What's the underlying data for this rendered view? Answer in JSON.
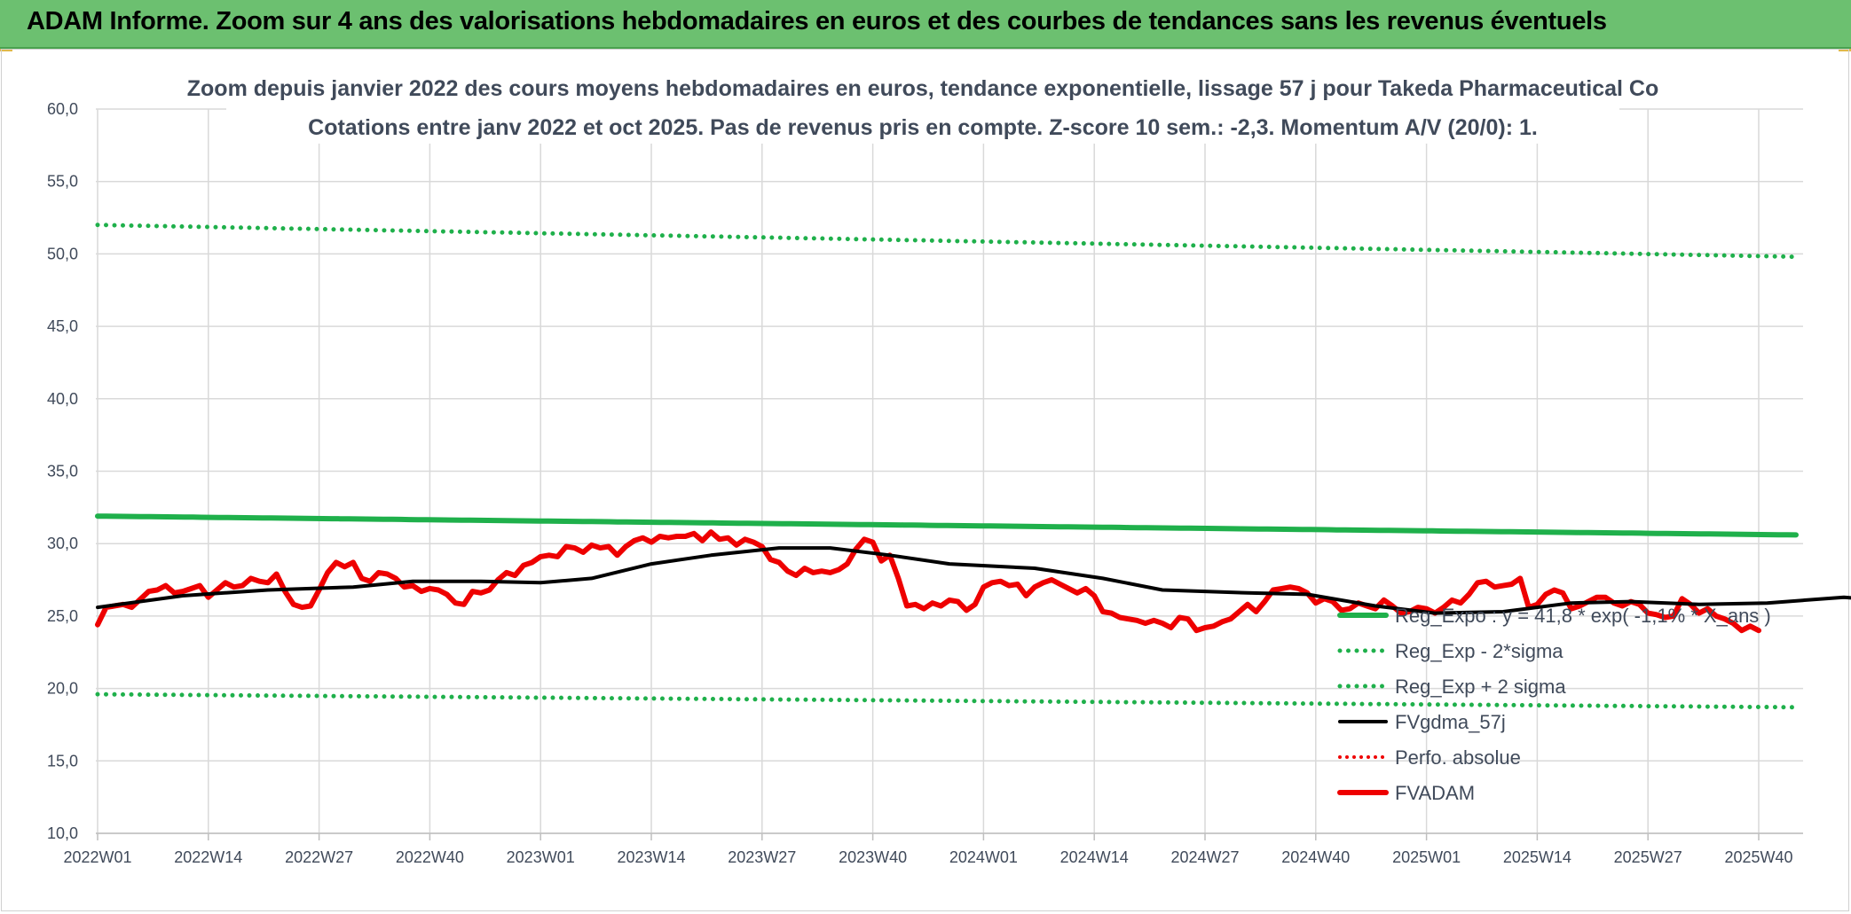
{
  "banner": {
    "title": "ADAM Informe. Zoom sur 4 ans des valorisations hebdomadaires en euros et des courbes de tendances sans les revenus éventuels"
  },
  "chart_data": {
    "type": "line",
    "title": "Zoom depuis janvier 2022 des cours moyens hebdomadaires en euros, tendance exponentielle, lissage 57 j pour Takeda Pharmaceutical Co",
    "subtitle": "Cotations entre janv 2022 et oct 2025. Pas de revenus pris en compte. Z-score 10 sem.: -2,3. Momentum A/V (20/0): 1.",
    "xlabel": "",
    "ylabel": "",
    "ylim": [
      10,
      60
    ],
    "yticks": [
      "10,0",
      "15,0",
      "20,0",
      "25,0",
      "30,0",
      "35,0",
      "40,0",
      "45,0",
      "50,0",
      "55,0",
      "60,0"
    ],
    "xticks": [
      "2022W01",
      "2022W14",
      "2022W27",
      "2022W40",
      "2023W01",
      "2023W14",
      "2023W27",
      "2023W40",
      "2024W01",
      "2024W14",
      "2024W27",
      "2024W40",
      "2025W01",
      "2025W14",
      "2025W27",
      "2025W40"
    ],
    "grid": "both",
    "legend_position": "bottom-right",
    "colors": {
      "green": "#1fb04b",
      "black": "#000000",
      "red": "#ee0000",
      "grid": "#d9d9d9"
    },
    "series": [
      {
        "name": "Reg_Expo : y = 41,8 * exp( -1,1% * X_ans )",
        "style": "solid-green",
        "points": [
          [
            0,
            31.9
          ],
          [
            196,
            30.6
          ]
        ]
      },
      {
        "name": "Reg_Exp - 2*sigma",
        "style": "dotted-green",
        "points": [
          [
            0,
            19.6
          ],
          [
            196,
            18.7
          ]
        ]
      },
      {
        "name": "Reg_Exp + 2 sigma",
        "style": "dotted-green",
        "points": [
          [
            0,
            52.0
          ],
          [
            196,
            49.8
          ]
        ]
      },
      {
        "name": "FVgdma_57j",
        "style": "solid-black",
        "points": [
          [
            0,
            25.6
          ],
          [
            10,
            26.4
          ],
          [
            20,
            26.8
          ],
          [
            30,
            27.0
          ],
          [
            37,
            27.4
          ],
          [
            45,
            27.4
          ],
          [
            52,
            27.3
          ],
          [
            58,
            27.6
          ],
          [
            65,
            28.6
          ],
          [
            72,
            29.2
          ],
          [
            80,
            29.7
          ],
          [
            86,
            29.7
          ],
          [
            93,
            29.2
          ],
          [
            100,
            28.6
          ],
          [
            110,
            28.3
          ],
          [
            118,
            27.6
          ],
          [
            125,
            26.8
          ],
          [
            135,
            26.6
          ],
          [
            142,
            26.5
          ],
          [
            150,
            25.7
          ],
          [
            157,
            25.2
          ],
          [
            165,
            25.3
          ],
          [
            173,
            25.9
          ],
          [
            180,
            26.0
          ],
          [
            188,
            25.8
          ],
          [
            196,
            25.9
          ],
          [
            205,
            26.3
          ],
          [
            213,
            25.9
          ],
          [
            222,
            24.6
          ]
        ]
      },
      {
        "name": "Perfo. absolue",
        "style": "dotted-red",
        "points": []
      },
      {
        "name": "FVADAM",
        "style": "solid-red",
        "points": [
          [
            0,
            24.4
          ],
          [
            1,
            25.6
          ],
          [
            3,
            25.8
          ],
          [
            4,
            25.6
          ],
          [
            6,
            26.7
          ],
          [
            7,
            26.8
          ],
          [
            8,
            27.1
          ],
          [
            9,
            26.6
          ],
          [
            10,
            26.7
          ],
          [
            11,
            26.9
          ],
          [
            12,
            27.1
          ],
          [
            13,
            26.3
          ],
          [
            14,
            26.8
          ],
          [
            15,
            27.3
          ],
          [
            16,
            27.0
          ],
          [
            17,
            27.1
          ],
          [
            18,
            27.6
          ],
          [
            19,
            27.4
          ],
          [
            20,
            27.3
          ],
          [
            21,
            27.9
          ],
          [
            22,
            26.7
          ],
          [
            23,
            25.8
          ],
          [
            24,
            25.6
          ],
          [
            25,
            25.7
          ],
          [
            26,
            26.8
          ],
          [
            27,
            28.0
          ],
          [
            28,
            28.7
          ],
          [
            29,
            28.4
          ],
          [
            30,
            28.7
          ],
          [
            31,
            27.6
          ],
          [
            32,
            27.4
          ],
          [
            33,
            28.0
          ],
          [
            34,
            27.9
          ],
          [
            35,
            27.6
          ],
          [
            36,
            27.0
          ],
          [
            37,
            27.1
          ],
          [
            38,
            26.7
          ],
          [
            39,
            26.9
          ],
          [
            40,
            26.8
          ],
          [
            41,
            26.5
          ],
          [
            42,
            25.9
          ],
          [
            43,
            25.8
          ],
          [
            44,
            26.7
          ],
          [
            45,
            26.6
          ],
          [
            46,
            26.8
          ],
          [
            47,
            27.5
          ],
          [
            48,
            28.0
          ],
          [
            49,
            27.8
          ],
          [
            50,
            28.5
          ],
          [
            51,
            28.7
          ],
          [
            52,
            29.1
          ],
          [
            53,
            29.2
          ],
          [
            54,
            29.1
          ],
          [
            55,
            29.8
          ],
          [
            56,
            29.7
          ],
          [
            57,
            29.4
          ],
          [
            58,
            29.9
          ],
          [
            59,
            29.7
          ],
          [
            60,
            29.8
          ],
          [
            61,
            29.2
          ],
          [
            62,
            29.8
          ],
          [
            63,
            30.2
          ],
          [
            64,
            30.4
          ],
          [
            65,
            30.1
          ],
          [
            66,
            30.5
          ],
          [
            67,
            30.4
          ],
          [
            68,
            30.5
          ],
          [
            69,
            30.5
          ],
          [
            70,
            30.7
          ],
          [
            71,
            30.2
          ],
          [
            72,
            30.8
          ],
          [
            73,
            30.3
          ],
          [
            74,
            30.4
          ],
          [
            75,
            29.9
          ],
          [
            76,
            30.3
          ],
          [
            77,
            30.1
          ],
          [
            78,
            29.8
          ],
          [
            79,
            28.9
          ],
          [
            80,
            28.7
          ],
          [
            81,
            28.1
          ],
          [
            82,
            27.8
          ],
          [
            83,
            28.3
          ],
          [
            84,
            28.0
          ],
          [
            85,
            28.1
          ],
          [
            86,
            28.0
          ],
          [
            87,
            28.2
          ],
          [
            88,
            28.6
          ],
          [
            89,
            29.6
          ],
          [
            90,
            30.3
          ],
          [
            91,
            30.1
          ],
          [
            92,
            28.8
          ],
          [
            93,
            29.2
          ],
          [
            94,
            27.6
          ],
          [
            95,
            25.7
          ],
          [
            96,
            25.8
          ],
          [
            97,
            25.5
          ],
          [
            98,
            25.9
          ],
          [
            99,
            25.7
          ],
          [
            100,
            26.1
          ],
          [
            101,
            26.0
          ],
          [
            102,
            25.4
          ],
          [
            103,
            25.8
          ],
          [
            104,
            27.0
          ],
          [
            105,
            27.3
          ],
          [
            106,
            27.4
          ],
          [
            107,
            27.1
          ],
          [
            108,
            27.2
          ],
          [
            109,
            26.4
          ],
          [
            110,
            27.0
          ],
          [
            111,
            27.3
          ],
          [
            112,
            27.5
          ],
          [
            113,
            27.2
          ],
          [
            114,
            26.9
          ],
          [
            115,
            26.6
          ],
          [
            116,
            26.9
          ],
          [
            117,
            26.4
          ],
          [
            118,
            25.3
          ],
          [
            119,
            25.2
          ],
          [
            120,
            24.9
          ],
          [
            121,
            24.8
          ],
          [
            122,
            24.7
          ],
          [
            123,
            24.5
          ],
          [
            124,
            24.7
          ],
          [
            125,
            24.5
          ],
          [
            126,
            24.2
          ],
          [
            127,
            24.9
          ],
          [
            128,
            24.8
          ],
          [
            129,
            24.0
          ],
          [
            130,
            24.2
          ],
          [
            131,
            24.3
          ],
          [
            132,
            24.6
          ],
          [
            133,
            24.8
          ],
          [
            134,
            25.3
          ],
          [
            135,
            25.8
          ],
          [
            136,
            25.3
          ],
          [
            137,
            26.0
          ],
          [
            138,
            26.8
          ],
          [
            139,
            26.9
          ],
          [
            140,
            27.0
          ],
          [
            141,
            26.9
          ],
          [
            142,
            26.6
          ],
          [
            143,
            25.9
          ],
          [
            144,
            26.2
          ],
          [
            145,
            26.0
          ],
          [
            146,
            25.4
          ],
          [
            147,
            25.5
          ],
          [
            148,
            25.9
          ],
          [
            149,
            25.7
          ],
          [
            150,
            25.5
          ],
          [
            151,
            26.1
          ],
          [
            152,
            25.7
          ],
          [
            153,
            25.2
          ],
          [
            154,
            25.3
          ],
          [
            155,
            25.6
          ],
          [
            156,
            25.5
          ],
          [
            157,
            25.2
          ],
          [
            158,
            25.6
          ],
          [
            159,
            26.1
          ],
          [
            160,
            25.9
          ],
          [
            161,
            26.5
          ],
          [
            162,
            27.3
          ],
          [
            163,
            27.4
          ],
          [
            164,
            27.0
          ],
          [
            165,
            27.1
          ],
          [
            166,
            27.2
          ],
          [
            167,
            27.6
          ],
          [
            168,
            25.6
          ],
          [
            169,
            25.8
          ],
          [
            170,
            26.5
          ],
          [
            171,
            26.8
          ],
          [
            172,
            26.6
          ],
          [
            173,
            25.5
          ],
          [
            174,
            25.7
          ],
          [
            175,
            26.0
          ],
          [
            176,
            26.3
          ],
          [
            177,
            26.3
          ],
          [
            178,
            25.9
          ],
          [
            179,
            25.7
          ],
          [
            180,
            26.0
          ],
          [
            181,
            25.8
          ],
          [
            182,
            25.2
          ],
          [
            183,
            25.1
          ],
          [
            184,
            24.9
          ],
          [
            185,
            25.0
          ],
          [
            186,
            26.2
          ],
          [
            187,
            25.8
          ],
          [
            188,
            25.2
          ],
          [
            189,
            25.5
          ],
          [
            190,
            25.0
          ],
          [
            191,
            24.8
          ],
          [
            192,
            24.5
          ],
          [
            193,
            24.0
          ],
          [
            194,
            24.3
          ],
          [
            195,
            24.0
          ]
        ]
      }
    ]
  }
}
